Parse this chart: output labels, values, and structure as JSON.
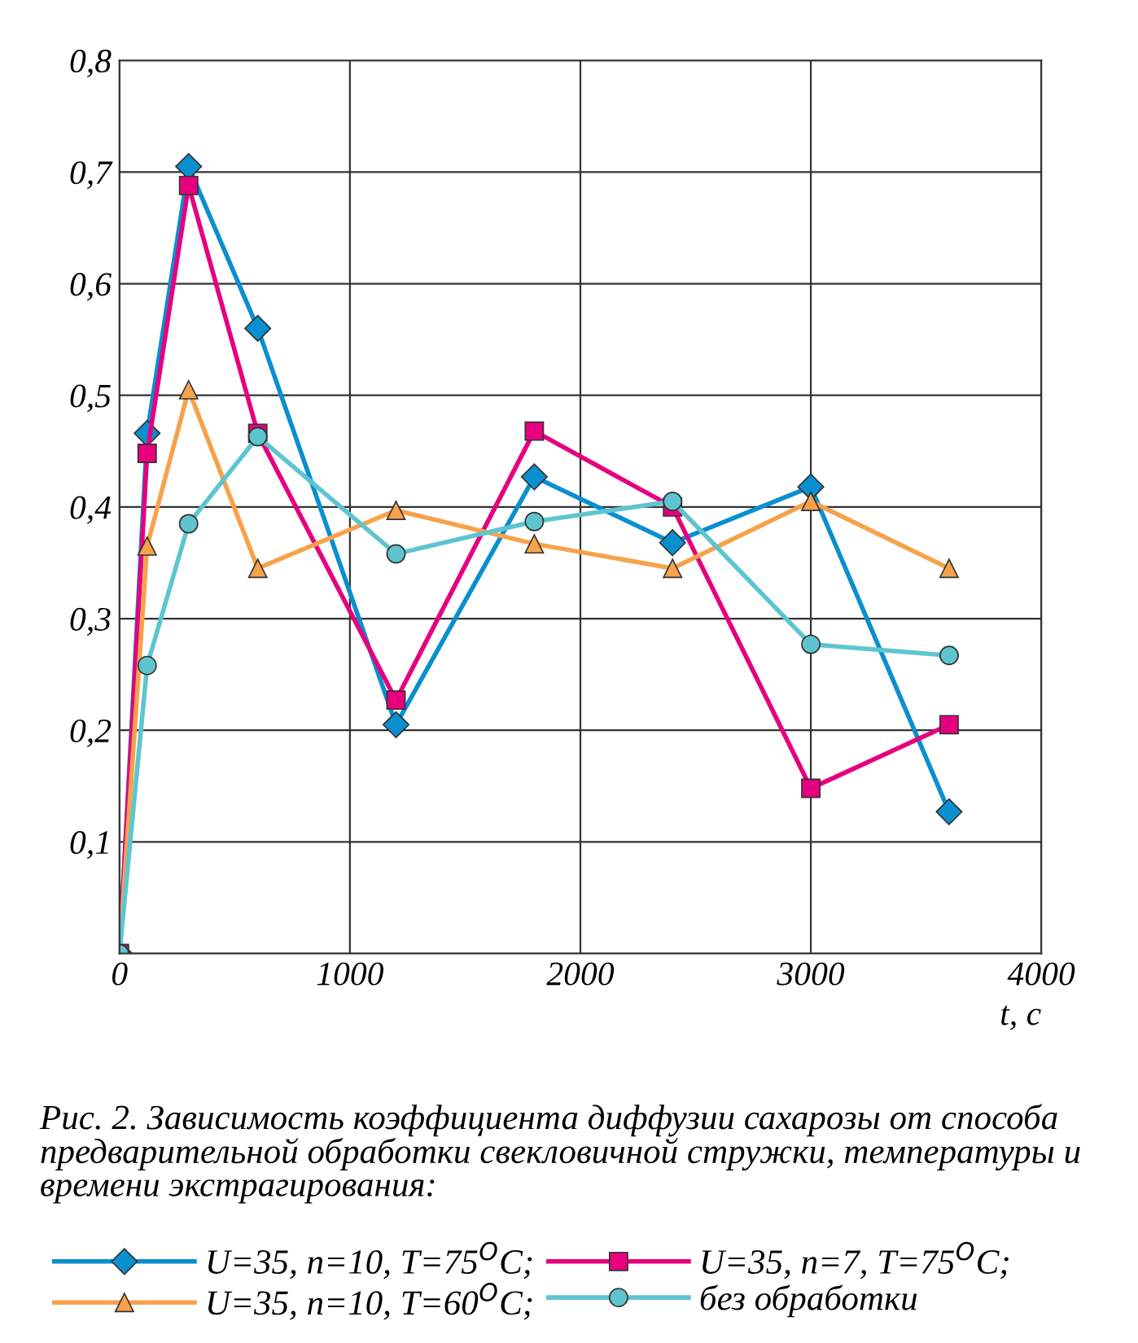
{
  "chart_data": {
    "type": "line",
    "xlabel": "t, c",
    "x": [
      0,
      120,
      300,
      600,
      1200,
      1800,
      2400,
      3000,
      3600
    ],
    "series": [
      {
        "name": "U=35, n=10, T=75$^{O}$C;",
        "color": "#0a8fcf",
        "marker": "diamond",
        "values": [
          0,
          0.466,
          0.705,
          0.56,
          0.205,
          0.427,
          0.368,
          0.418,
          0.127
        ]
      },
      {
        "name": "U=35, n=7, T=75$^{O}$C;",
        "color": "#e6007e",
        "marker": "square",
        "values": [
          0,
          0.448,
          0.688,
          0.466,
          0.227,
          0.468,
          0.4,
          0.148,
          0.205
        ]
      },
      {
        "name": "U=35, n=10, T=60$^{O}$C;",
        "color": "#f7a24b",
        "marker": "triangle",
        "values": [
          0,
          0.365,
          0.505,
          0.345,
          0.397,
          0.367,
          0.345,
          0.405,
          0.345
        ]
      },
      {
        "name": "без обработки",
        "color": "#5ec5d0",
        "marker": "circle",
        "values": [
          0,
          0.258,
          0.385,
          0.463,
          0.358,
          0.387,
          0.405,
          0.277,
          0.267
        ]
      }
    ],
    "xlim": [
      0,
      4000
    ],
    "xticks": [
      0,
      1000,
      2000,
      3000,
      4000
    ],
    "ylim": [
      0,
      0.8
    ],
    "yticks": [
      {
        "value": 0,
        "label": null
      },
      {
        "value": 0.1,
        "label": "0,1"
      },
      {
        "value": 0.2,
        "label": "0,2"
      },
      {
        "value": 0.3,
        "label": "0,3"
      },
      {
        "value": 0.4,
        "label": "0,4"
      },
      {
        "value": 0.5,
        "label": "0,5"
      },
      {
        "value": 0.6,
        "label": "0,6"
      },
      {
        "value": 0.7,
        "label": "0,7"
      },
      {
        "value": 0.8,
        "label": "0,8"
      }
    ],
    "grid": true,
    "legend": "bottom",
    "line_style": "solid",
    "annotations": [
      "Рис. 2. Зависимость коэффициента диффузии сахарозы от способа предварительной обработки свекловичной стружки, температуры и времени экстрагирования:"
    ]
  }
}
